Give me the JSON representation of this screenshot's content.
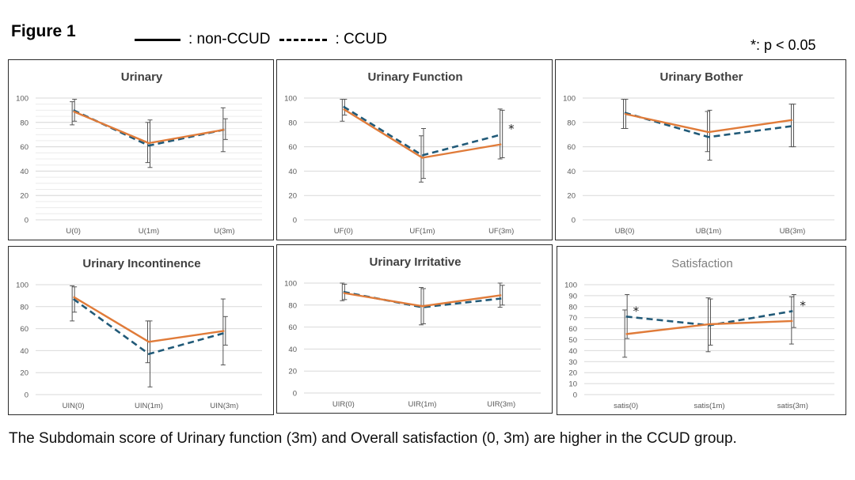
{
  "figure": {
    "title": "Figure 1",
    "legend": {
      "solid_label": ": non-CCUD",
      "dashed_label": ": CCUD"
    },
    "significance_note": "*: p < 0.05",
    "caption": "The Subdomain score of Urinary function (3m) and Overall satisfaction (0, 3m) are higher in the CCUD group."
  },
  "colors": {
    "non_ccud": "#e07b39",
    "ccud": "#215a78",
    "error_bar": "#555555",
    "grid": "#d9d9d9",
    "axis_text": "#595959"
  },
  "chart_data": [
    {
      "type": "line",
      "title": "Urinary",
      "title_bold": true,
      "categories": [
        "U(0)",
        "U(1m)",
        "U(3m)"
      ],
      "ylim": [
        0,
        100
      ],
      "yticks": [
        0,
        20,
        40,
        60,
        80,
        100
      ],
      "dense_grid": true,
      "series": [
        {
          "name": "non-CCUD",
          "style": "solid",
          "values": [
            89,
            63,
            74
          ],
          "err_low": [
            78,
            47,
            56
          ],
          "err_high": [
            97,
            80,
            92
          ]
        },
        {
          "name": "CCUD",
          "style": "dashed",
          "values": [
            90,
            61,
            74
          ],
          "err_low": [
            81,
            43,
            66
          ],
          "err_high": [
            99,
            82,
            83
          ]
        }
      ],
      "significance": []
    },
    {
      "type": "line",
      "title": "Urinary Function",
      "title_bold": true,
      "categories": [
        "UF(0)",
        "UF(1m)",
        "UF(3m)"
      ],
      "ylim": [
        0,
        100
      ],
      "yticks": [
        0,
        20,
        40,
        60,
        80,
        100
      ],
      "dense_grid": false,
      "series": [
        {
          "name": "non-CCUD",
          "style": "solid",
          "values": [
            91,
            51,
            62
          ],
          "err_low": [
            81,
            31,
            50
          ],
          "err_high": [
            99,
            69,
            91
          ]
        },
        {
          "name": "CCUD",
          "style": "dashed",
          "values": [
            93,
            53,
            70
          ],
          "err_low": [
            86,
            34,
            51
          ],
          "err_high": [
            99,
            75,
            90
          ]
        }
      ],
      "significance": [
        {
          "index": 2,
          "label": "*"
        }
      ]
    },
    {
      "type": "line",
      "title": "Urinary Bother",
      "title_bold": true,
      "categories": [
        "UB(0)",
        "UB(1m)",
        "UB(3m)"
      ],
      "ylim": [
        0,
        100
      ],
      "yticks": [
        0,
        20,
        40,
        60,
        80,
        100
      ],
      "dense_grid": false,
      "series": [
        {
          "name": "non-CCUD",
          "style": "solid",
          "values": [
            87,
            72,
            82
          ],
          "err_low": [
            75,
            56,
            60
          ],
          "err_high": [
            99,
            89,
            95
          ]
        },
        {
          "name": "CCUD",
          "style": "dashed",
          "values": [
            88,
            68,
            77
          ],
          "err_low": [
            75,
            49,
            60
          ],
          "err_high": [
            99,
            90,
            95
          ]
        }
      ],
      "significance": []
    },
    {
      "type": "line",
      "title": "Urinary Incontinence",
      "title_bold": true,
      "categories": [
        "UIN(0)",
        "UIN(1m)",
        "UIN(3m)"
      ],
      "ylim": [
        0,
        100
      ],
      "yticks": [
        0,
        20,
        40,
        60,
        80,
        100
      ],
      "dense_grid": false,
      "series": [
        {
          "name": "non-CCUD",
          "style": "solid",
          "values": [
            89,
            48,
            58
          ],
          "err_low": [
            67,
            29,
            27
          ],
          "err_high": [
            99,
            67,
            87
          ]
        },
        {
          "name": "CCUD",
          "style": "dashed",
          "values": [
            87,
            37,
            56
          ],
          "err_low": [
            75,
            7,
            45
          ],
          "err_high": [
            98,
            67,
            71
          ]
        }
      ],
      "significance": []
    },
    {
      "type": "line",
      "title": "Urinary Irritative",
      "title_bold": true,
      "categories": [
        "UIR(0)",
        "UIR(1m)",
        "UIR(3m)"
      ],
      "ylim": [
        0,
        100
      ],
      "yticks": [
        0,
        20,
        40,
        60,
        80,
        100
      ],
      "dense_grid": false,
      "series": [
        {
          "name": "non-CCUD",
          "style": "solid",
          "values": [
            91,
            79,
            89
          ],
          "err_low": [
            84,
            62,
            78
          ],
          "err_high": [
            100,
            96,
            100
          ]
        },
        {
          "name": "CCUD",
          "style": "dashed",
          "values": [
            92,
            78,
            86
          ],
          "err_low": [
            85,
            63,
            80
          ],
          "err_high": [
            99,
            95,
            98
          ]
        }
      ],
      "significance": []
    },
    {
      "type": "line",
      "title": "Satisfaction",
      "title_bold": false,
      "categories": [
        "satis(0)",
        "satis(1m)",
        "satis(3m)"
      ],
      "ylim": [
        0,
        100
      ],
      "yticks": [
        0,
        10,
        20,
        30,
        40,
        50,
        60,
        70,
        80,
        90,
        100
      ],
      "dense_grid": false,
      "series": [
        {
          "name": "non-CCUD",
          "style": "solid",
          "values": [
            55,
            64,
            67
          ],
          "err_low": [
            34,
            39,
            46
          ],
          "err_high": [
            77,
            88,
            89
          ]
        },
        {
          "name": "CCUD",
          "style": "dashed",
          "values": [
            71,
            63,
            76
          ],
          "err_low": [
            51,
            45,
            61
          ],
          "err_high": [
            91,
            87,
            91
          ]
        }
      ],
      "significance": [
        {
          "index": 0,
          "label": "*"
        },
        {
          "index": 2,
          "label": "*"
        }
      ]
    }
  ]
}
